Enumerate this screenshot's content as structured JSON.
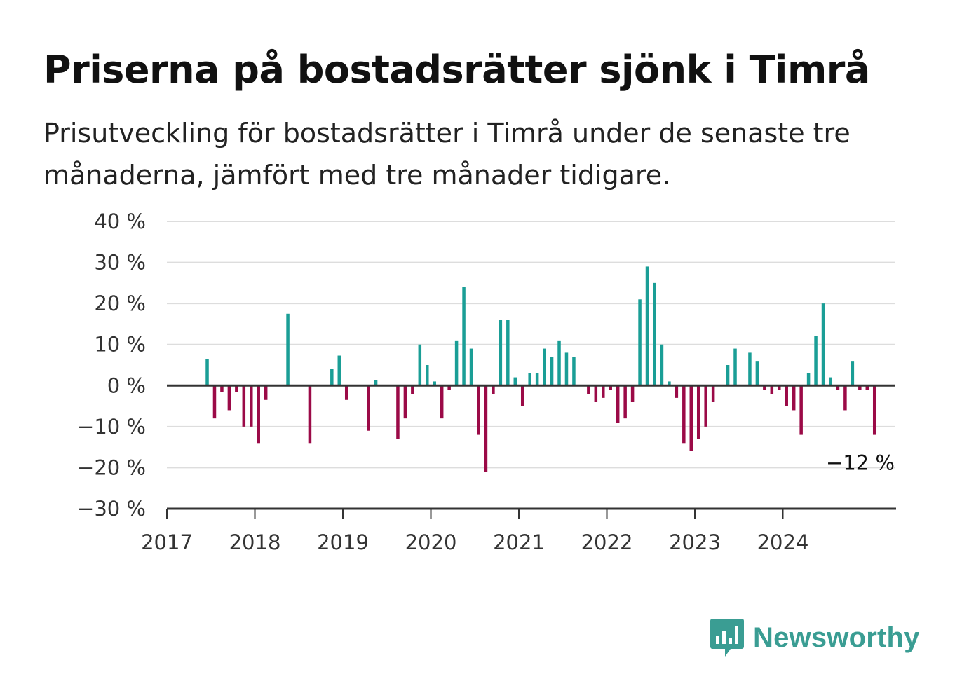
{
  "header": {
    "title": "Priserna på bostadsrätter sjönk i Timrå",
    "subtitle": "Prisutveckling för bostadsrätter i Timrå under de senaste tre månaderna, jämfört med tre månader tidigare."
  },
  "brand": {
    "name": "Newsworthy",
    "icon": "newsworthy-logo-icon",
    "color": "#3a9d93"
  },
  "colors": {
    "positive": "#1a9e96",
    "negative": "#9b0a47",
    "grid": "#dddddd",
    "axis": "#333333"
  },
  "chart_data": {
    "type": "bar",
    "ylim": [
      -30,
      40
    ],
    "yticks": [
      40,
      30,
      20,
      10,
      0,
      -10,
      -20,
      -30
    ],
    "ytick_labels": [
      "40 %",
      "30 %",
      "20 %",
      "10 %",
      "0 %",
      "−10 %",
      "−20 %",
      "−30 %"
    ],
    "xtick_labels": [
      "2017",
      "2018",
      "2019",
      "2020",
      "2021",
      "2022",
      "2023",
      "2024"
    ],
    "grid": true,
    "start": "2017-01",
    "series": [
      {
        "values": [
          null,
          null,
          null,
          null,
          null,
          6.5,
          -8,
          -1.5,
          -6,
          -1.5,
          -10,
          -10,
          -14,
          -3.5,
          null,
          null,
          17.5,
          null,
          null,
          -14,
          null,
          null,
          4,
          7.3,
          -3.5,
          null,
          null,
          -11,
          1.3,
          null,
          null,
          -13,
          -8,
          -2,
          10,
          5,
          1,
          -8,
          -1,
          11,
          24,
          9,
          -12,
          -21,
          -2,
          16,
          16,
          2,
          -5,
          3,
          3,
          9,
          7,
          11,
          8,
          7,
          null,
          -2,
          -4,
          -3,
          -1,
          -9,
          -8,
          -4,
          21,
          29,
          25,
          10,
          1,
          -3,
          -14,
          -16,
          -13,
          -10,
          -4,
          null,
          5,
          9,
          null,
          8,
          6,
          -1,
          -2,
          -1,
          -5,
          -6,
          -12,
          3,
          12,
          20,
          2,
          -1,
          -6,
          6,
          -1,
          -1,
          -12
        ]
      }
    ],
    "end_label": "−12 %"
  }
}
